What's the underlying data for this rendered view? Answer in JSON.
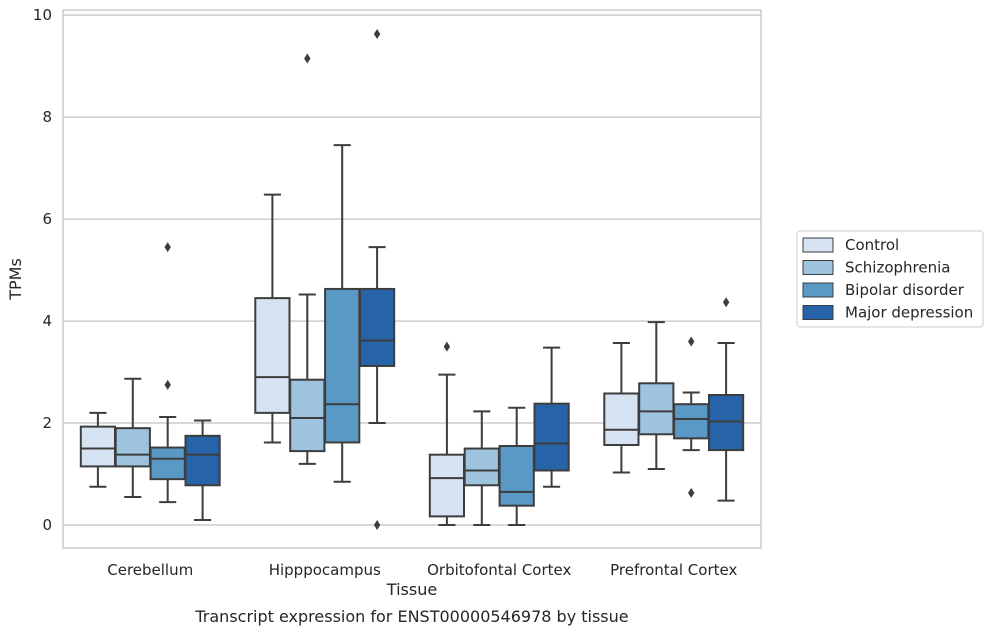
{
  "chart_data": {
    "type": "box",
    "xlabel": "Tissue",
    "ylabel": "TPMs",
    "caption": "Transcript expression for ENST00000546978 by tissue",
    "ylim": [
      -0.45,
      10.1
    ],
    "yticks": [
      0,
      2,
      4,
      6,
      8,
      10
    ],
    "grid": "horizontal",
    "legend_position": "right",
    "categories": [
      "Cerebellum",
      "Hipppocampus",
      "Orbitofontal Cortex",
      "Prefrontal Cortex"
    ],
    "series": [
      {
        "name": "Control",
        "color": "#d5e3f2",
        "boxes": [
          {
            "whislo": 0.75,
            "q1": 1.15,
            "med": 1.5,
            "q3": 1.93,
            "whishi": 2.2,
            "fliers": []
          },
          {
            "whislo": 1.62,
            "q1": 2.2,
            "med": 2.9,
            "q3": 4.45,
            "whishi": 6.48,
            "fliers": []
          },
          {
            "whislo": 0.0,
            "q1": 0.17,
            "med": 0.92,
            "q3": 1.38,
            "whishi": 2.95,
            "fliers": [
              3.5
            ]
          },
          {
            "whislo": 1.03,
            "q1": 1.57,
            "med": 1.87,
            "q3": 2.58,
            "whishi": 3.57,
            "fliers": []
          }
        ]
      },
      {
        "name": "Schizophrenia",
        "color": "#9dc3de",
        "boxes": [
          {
            "whislo": 0.55,
            "q1": 1.15,
            "med": 1.38,
            "q3": 1.9,
            "whishi": 2.87,
            "fliers": []
          },
          {
            "whislo": 1.2,
            "q1": 1.45,
            "med": 2.1,
            "q3": 2.85,
            "whishi": 4.52,
            "fliers": [
              9.15
            ]
          },
          {
            "whislo": 0.0,
            "q1": 0.78,
            "med": 1.07,
            "q3": 1.5,
            "whishi": 2.23,
            "fliers": []
          },
          {
            "whislo": 1.1,
            "q1": 1.78,
            "med": 2.23,
            "q3": 2.78,
            "whishi": 3.98,
            "fliers": []
          }
        ]
      },
      {
        "name": "Bipolar disorder",
        "color": "#5a99c6",
        "boxes": [
          {
            "whislo": 0.45,
            "q1": 0.9,
            "med": 1.3,
            "q3": 1.52,
            "whishi": 2.12,
            "fliers": [
              2.75,
              5.45
            ]
          },
          {
            "whislo": 0.85,
            "q1": 1.62,
            "med": 2.37,
            "q3": 4.63,
            "whishi": 7.45,
            "fliers": []
          },
          {
            "whislo": 0.0,
            "q1": 0.38,
            "med": 0.65,
            "q3": 1.55,
            "whishi": 2.3,
            "fliers": []
          },
          {
            "whislo": 1.47,
            "q1": 1.7,
            "med": 2.08,
            "q3": 2.37,
            "whishi": 2.6,
            "fliers": [
              0.63,
              3.6
            ]
          }
        ]
      },
      {
        "name": "Major depression",
        "color": "#2763a8",
        "boxes": [
          {
            "whislo": 0.1,
            "q1": 0.78,
            "med": 1.38,
            "q3": 1.75,
            "whishi": 2.05,
            "fliers": []
          },
          {
            "whislo": 2.0,
            "q1": 3.12,
            "med": 3.62,
            "q3": 4.63,
            "whishi": 5.45,
            "fliers": [
              0.0,
              9.63
            ]
          },
          {
            "whislo": 0.75,
            "q1": 1.07,
            "med": 1.6,
            "q3": 2.38,
            "whishi": 3.48,
            "fliers": []
          },
          {
            "whislo": 0.48,
            "q1": 1.47,
            "med": 2.03,
            "q3": 2.55,
            "whishi": 3.57,
            "fliers": [
              4.37
            ]
          }
        ]
      }
    ]
  }
}
